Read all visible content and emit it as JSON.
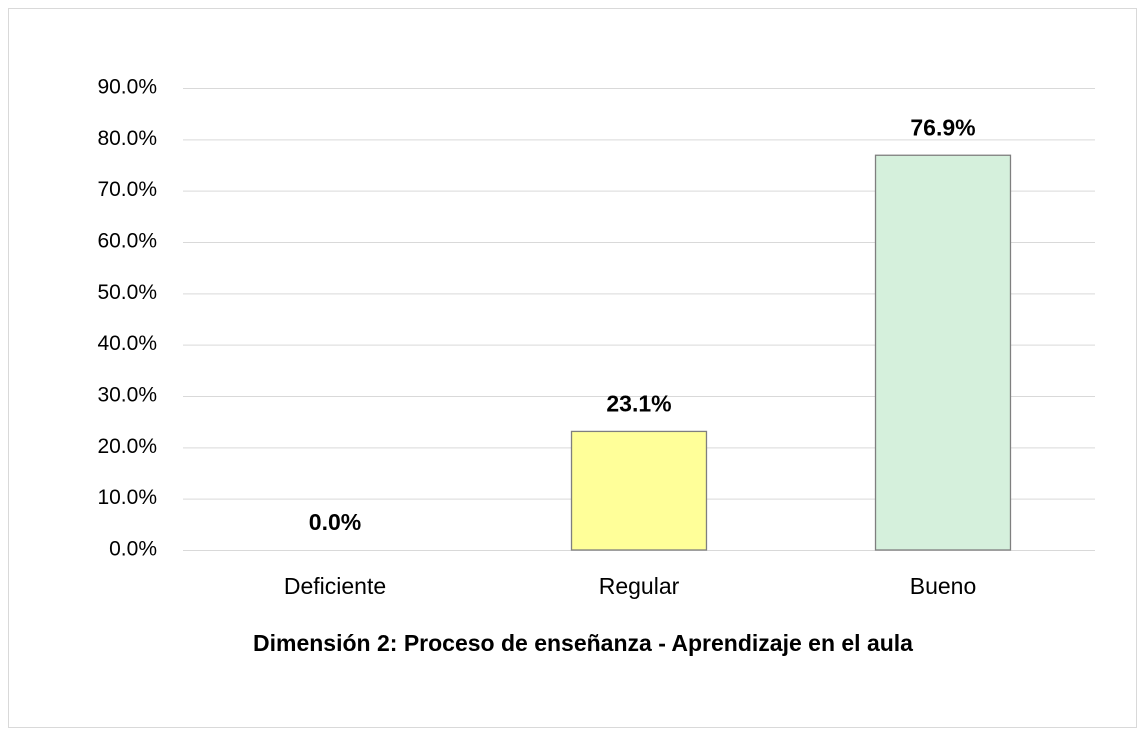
{
  "chart_data": {
    "type": "bar",
    "title": "Dimensión 2: Proceso de enseñanza - Aprendizaje en el aula",
    "categories": [
      "Deficiente",
      "Regular",
      "Bueno"
    ],
    "values": [
      0,
      23.1,
      76.9
    ],
    "value_labels": [
      "0.0%",
      "23.1%",
      "76.9%"
    ],
    "colors": [
      "#ffc7ce",
      "#ffff99",
      "#d5f0dc"
    ],
    "ylim": [
      0,
      90
    ],
    "yticks": [
      {
        "value": 0,
        "label": "0.0%"
      },
      {
        "value": 10,
        "label": "10.0%"
      },
      {
        "value": 20,
        "label": "20.0%"
      },
      {
        "value": 30,
        "label": "30.0%"
      },
      {
        "value": 40,
        "label": "40.0%"
      },
      {
        "value": 50,
        "label": "50.0%"
      },
      {
        "value": 60,
        "label": "60.0%"
      },
      {
        "value": 70,
        "label": "70.0%"
      },
      {
        "value": 80,
        "label": "80.0%"
      },
      {
        "value": 90,
        "label": "90.0%"
      }
    ],
    "grid": true
  }
}
